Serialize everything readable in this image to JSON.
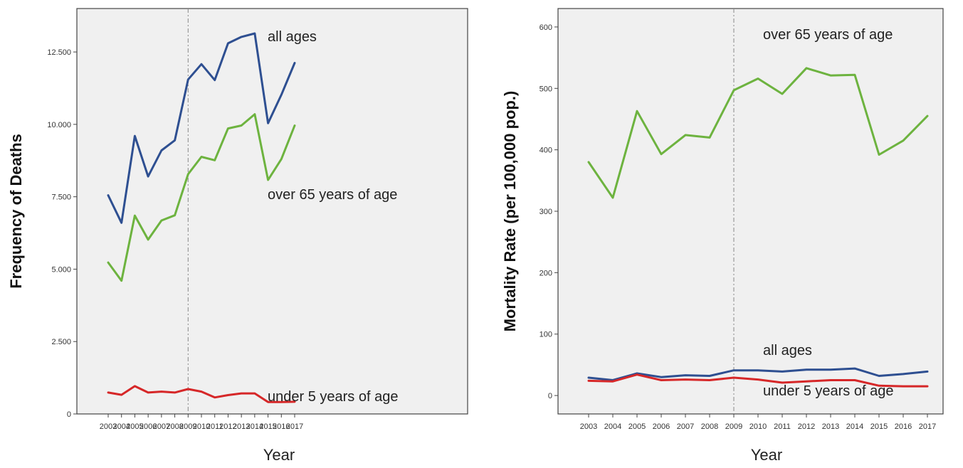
{
  "chart_data": [
    {
      "type": "line",
      "title": "",
      "xlabel": "Year",
      "ylabel": "Frequency of Deaths",
      "categories": [
        "2003",
        "2004",
        "2005",
        "2006",
        "2007",
        "2008",
        "2009",
        "2010",
        "2011",
        "2012",
        "2013",
        "2014",
        "2015",
        "2016",
        "2017"
      ],
      "ylim": [
        0,
        14000
      ],
      "yticks": [
        0,
        2500,
        5000,
        7500,
        10000,
        12500
      ],
      "ytick_labels": [
        "0",
        "2.500",
        "5.000",
        "7.500",
        "10.000",
        "12.500"
      ],
      "reference_line_x": "2009",
      "background": "#f0f0f0",
      "series": [
        {
          "name": "all ages",
          "color": "#2e4f91",
          "values": [
            7550,
            6600,
            9600,
            8200,
            9100,
            9450,
            11550,
            12080,
            11530,
            12800,
            13020,
            13140,
            10040,
            11020,
            12120
          ]
        },
        {
          "name": "over 65 years of age",
          "color": "#6db33f",
          "values": [
            5230,
            4600,
            6850,
            6020,
            6680,
            6860,
            8280,
            8880,
            8760,
            9860,
            9960,
            10350,
            8080,
            8800,
            9960
          ]
        },
        {
          "name": "under 5 years of age",
          "color": "#d62728",
          "values": [
            740,
            660,
            960,
            740,
            770,
            740,
            860,
            770,
            570,
            650,
            710,
            710,
            410,
            410,
            420
          ]
        }
      ]
    },
    {
      "type": "line",
      "title": "",
      "xlabel": "Year",
      "ylabel": "Mortality Rate (per 100,000 pop.)",
      "categories": [
        "2003",
        "2004",
        "2005",
        "2006",
        "2007",
        "2008",
        "2009",
        "2010",
        "2011",
        "2012",
        "2013",
        "2014",
        "2015",
        "2016",
        "2017"
      ],
      "ylim": [
        -30,
        630
      ],
      "yticks": [
        0,
        100,
        200,
        300,
        400,
        500,
        600
      ],
      "ytick_labels": [
        "0",
        "100",
        "200",
        "300",
        "400",
        "500",
        "600"
      ],
      "reference_line_x": "2009",
      "background": "#f0f0f0",
      "series": [
        {
          "name": "over 65 years of age",
          "color": "#6db33f",
          "values": [
            380,
            322,
            463,
            393,
            424,
            420,
            497,
            516,
            491,
            533,
            521,
            522,
            392,
            415,
            455
          ]
        },
        {
          "name": "all ages",
          "color": "#2e4f91",
          "values": [
            29,
            25,
            36,
            30,
            33,
            32,
            41,
            41,
            39,
            42,
            42,
            44,
            32,
            35,
            39
          ]
        },
        {
          "name": "under 5 years of age",
          "color": "#d62728",
          "values": [
            24,
            23,
            34,
            25,
            26,
            25,
            29,
            26,
            21,
            23,
            25,
            25,
            16,
            15,
            15
          ]
        }
      ]
    }
  ]
}
